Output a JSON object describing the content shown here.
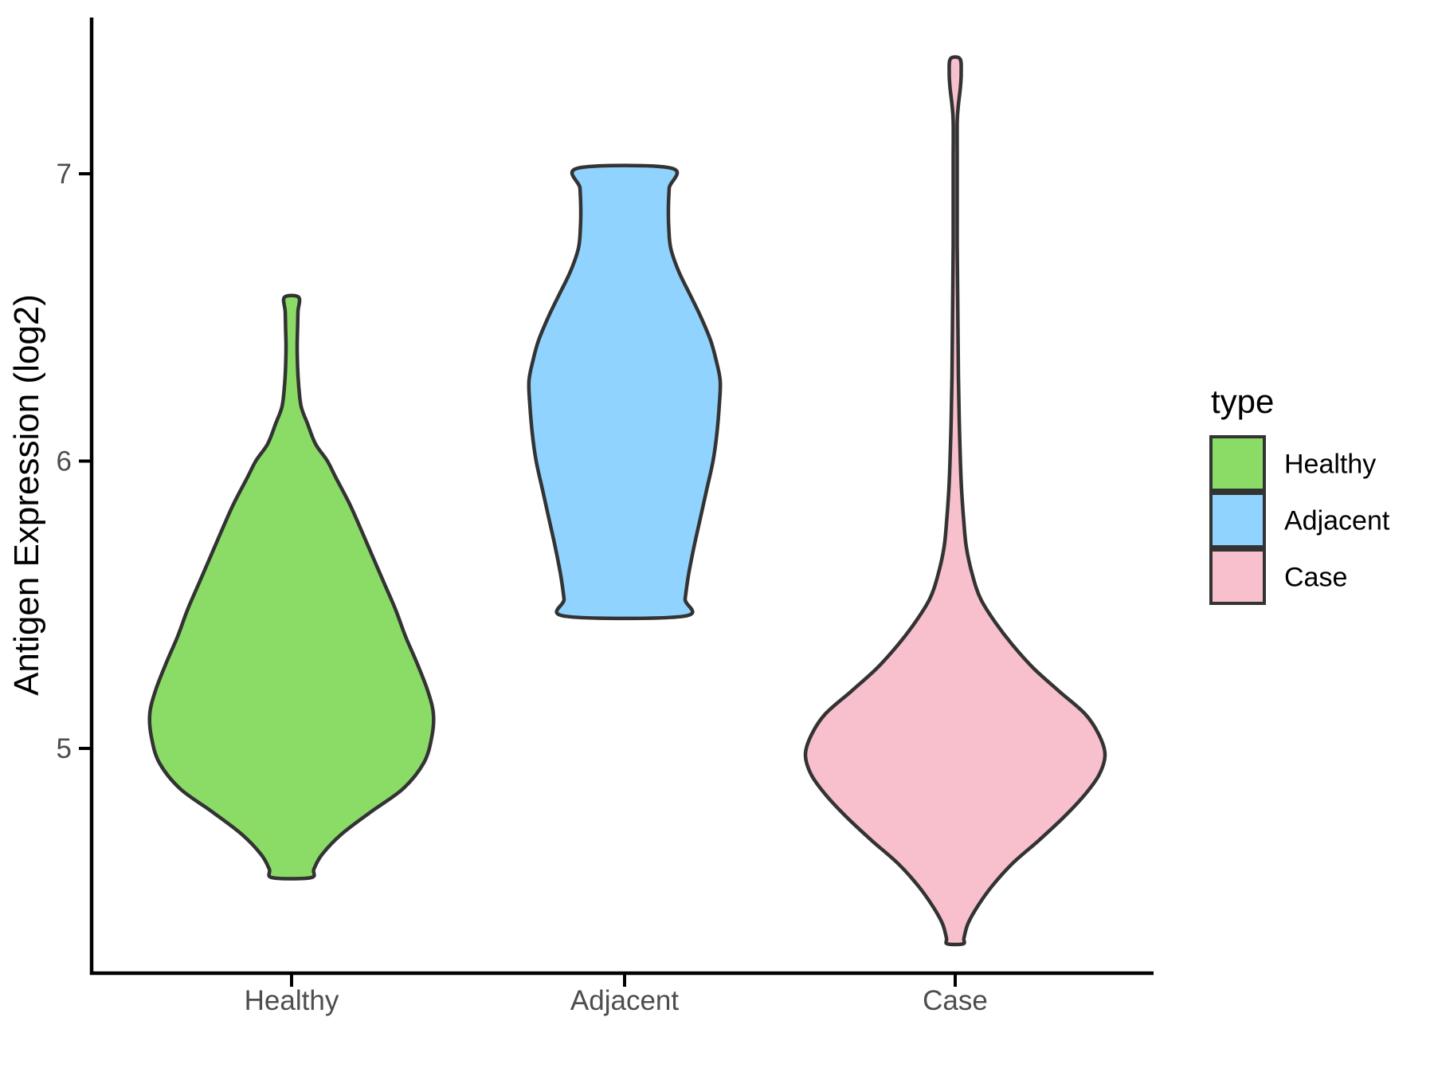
{
  "style": {
    "background": "#FFFFFF",
    "violin_outline": "#333333",
    "axis_line_color": "#000000",
    "tick_label_color": "#4D4D4D",
    "text_color": "#000000"
  },
  "legend": {
    "title": "type",
    "position": "right",
    "items": [
      {
        "label": "Healthy",
        "color": "#8BDB67"
      },
      {
        "label": "Adjacent",
        "color": "#8FD3FE"
      },
      {
        "label": "Case",
        "color": "#F8C0CC"
      }
    ]
  },
  "chart_data": {
    "type": "violin",
    "title": "",
    "xlabel": "",
    "ylabel": "Antigen Expression (log2)",
    "categories": [
      "Healthy",
      "Adjacent",
      "Case"
    ],
    "yticks": [
      7,
      6,
      5
    ],
    "ylim": [
      4.22,
      7.54
    ],
    "grid": false,
    "legend_title": "type",
    "series": [
      {
        "name": "Healthy",
        "color": "#8BDB67",
        "min": 4.55,
        "max": 6.57,
        "peak_value": 5.12,
        "profile_note": "pairs of [expression_value, half_width_px]",
        "profile": [
          [
            6.57,
            9
          ],
          [
            6.52,
            8
          ],
          [
            6.46,
            7.5
          ],
          [
            6.4,
            7
          ],
          [
            6.33,
            7.5
          ],
          [
            6.26,
            9
          ],
          [
            6.19,
            12
          ],
          [
            6.13,
            20
          ],
          [
            6.06,
            30
          ],
          [
            6.0,
            45
          ],
          [
            5.94,
            56
          ],
          [
            5.85,
            73
          ],
          [
            5.75,
            89
          ],
          [
            5.66,
            103
          ],
          [
            5.57,
            117
          ],
          [
            5.48,
            131
          ],
          [
            5.39,
            143
          ],
          [
            5.3,
            157
          ],
          [
            5.2,
            171
          ],
          [
            5.12,
            178
          ],
          [
            5.04,
            176
          ],
          [
            4.95,
            166
          ],
          [
            4.86,
            140
          ],
          [
            4.78,
            100
          ],
          [
            4.7,
            62
          ],
          [
            4.63,
            38
          ],
          [
            4.58,
            28
          ],
          [
            4.55,
            24
          ]
        ]
      },
      {
        "name": "Adjacent",
        "color": "#8FD3FE",
        "min": 5.46,
        "max": 7.02,
        "peak_value": 6.3,
        "profile_note": "pairs of [expression_value, half_width_px]",
        "profile": [
          [
            7.02,
            58
          ],
          [
            6.95,
            56
          ],
          [
            6.88,
            55
          ],
          [
            6.81,
            55.5
          ],
          [
            6.74,
            58
          ],
          [
            6.66,
            68
          ],
          [
            6.58,
            82
          ],
          [
            6.5,
            96
          ],
          [
            6.42,
            108
          ],
          [
            6.35,
            115
          ],
          [
            6.28,
            120
          ],
          [
            6.2,
            119
          ],
          [
            6.1,
            116
          ],
          [
            6.0,
            111
          ],
          [
            5.9,
            103
          ],
          [
            5.8,
            95
          ],
          [
            5.7,
            87
          ],
          [
            5.6,
            80
          ],
          [
            5.52,
            76
          ],
          [
            5.46,
            74
          ]
        ]
      },
      {
        "name": "Case",
        "color": "#F8C0CC",
        "min": 4.32,
        "max": 7.4,
        "peak_value": 4.98,
        "profile_note": "pairs of [expression_value, half_width_px]",
        "profile": [
          [
            7.4,
            6
          ],
          [
            7.35,
            7.5
          ],
          [
            7.3,
            6.5
          ],
          [
            7.24,
            4
          ],
          [
            7.18,
            2.5
          ],
          [
            7.05,
            2.5
          ],
          [
            6.9,
            2.5
          ],
          [
            6.75,
            2.5
          ],
          [
            6.6,
            3
          ],
          [
            6.45,
            3.5
          ],
          [
            6.3,
            4
          ],
          [
            6.15,
            5
          ],
          [
            6.0,
            6.5
          ],
          [
            5.9,
            8
          ],
          [
            5.8,
            10.5
          ],
          [
            5.7,
            14
          ],
          [
            5.6,
            22
          ],
          [
            5.52,
            32
          ],
          [
            5.44,
            50
          ],
          [
            5.36,
            72
          ],
          [
            5.28,
            98
          ],
          [
            5.2,
            130
          ],
          [
            5.12,
            163
          ],
          [
            5.05,
            180
          ],
          [
            4.98,
            188
          ],
          [
            4.91,
            181
          ],
          [
            4.84,
            163
          ],
          [
            4.76,
            136
          ],
          [
            4.68,
            105
          ],
          [
            4.6,
            72
          ],
          [
            4.52,
            46
          ],
          [
            4.45,
            28
          ],
          [
            4.39,
            16
          ],
          [
            4.34,
            11
          ],
          [
            4.32,
            10
          ]
        ]
      }
    ]
  }
}
